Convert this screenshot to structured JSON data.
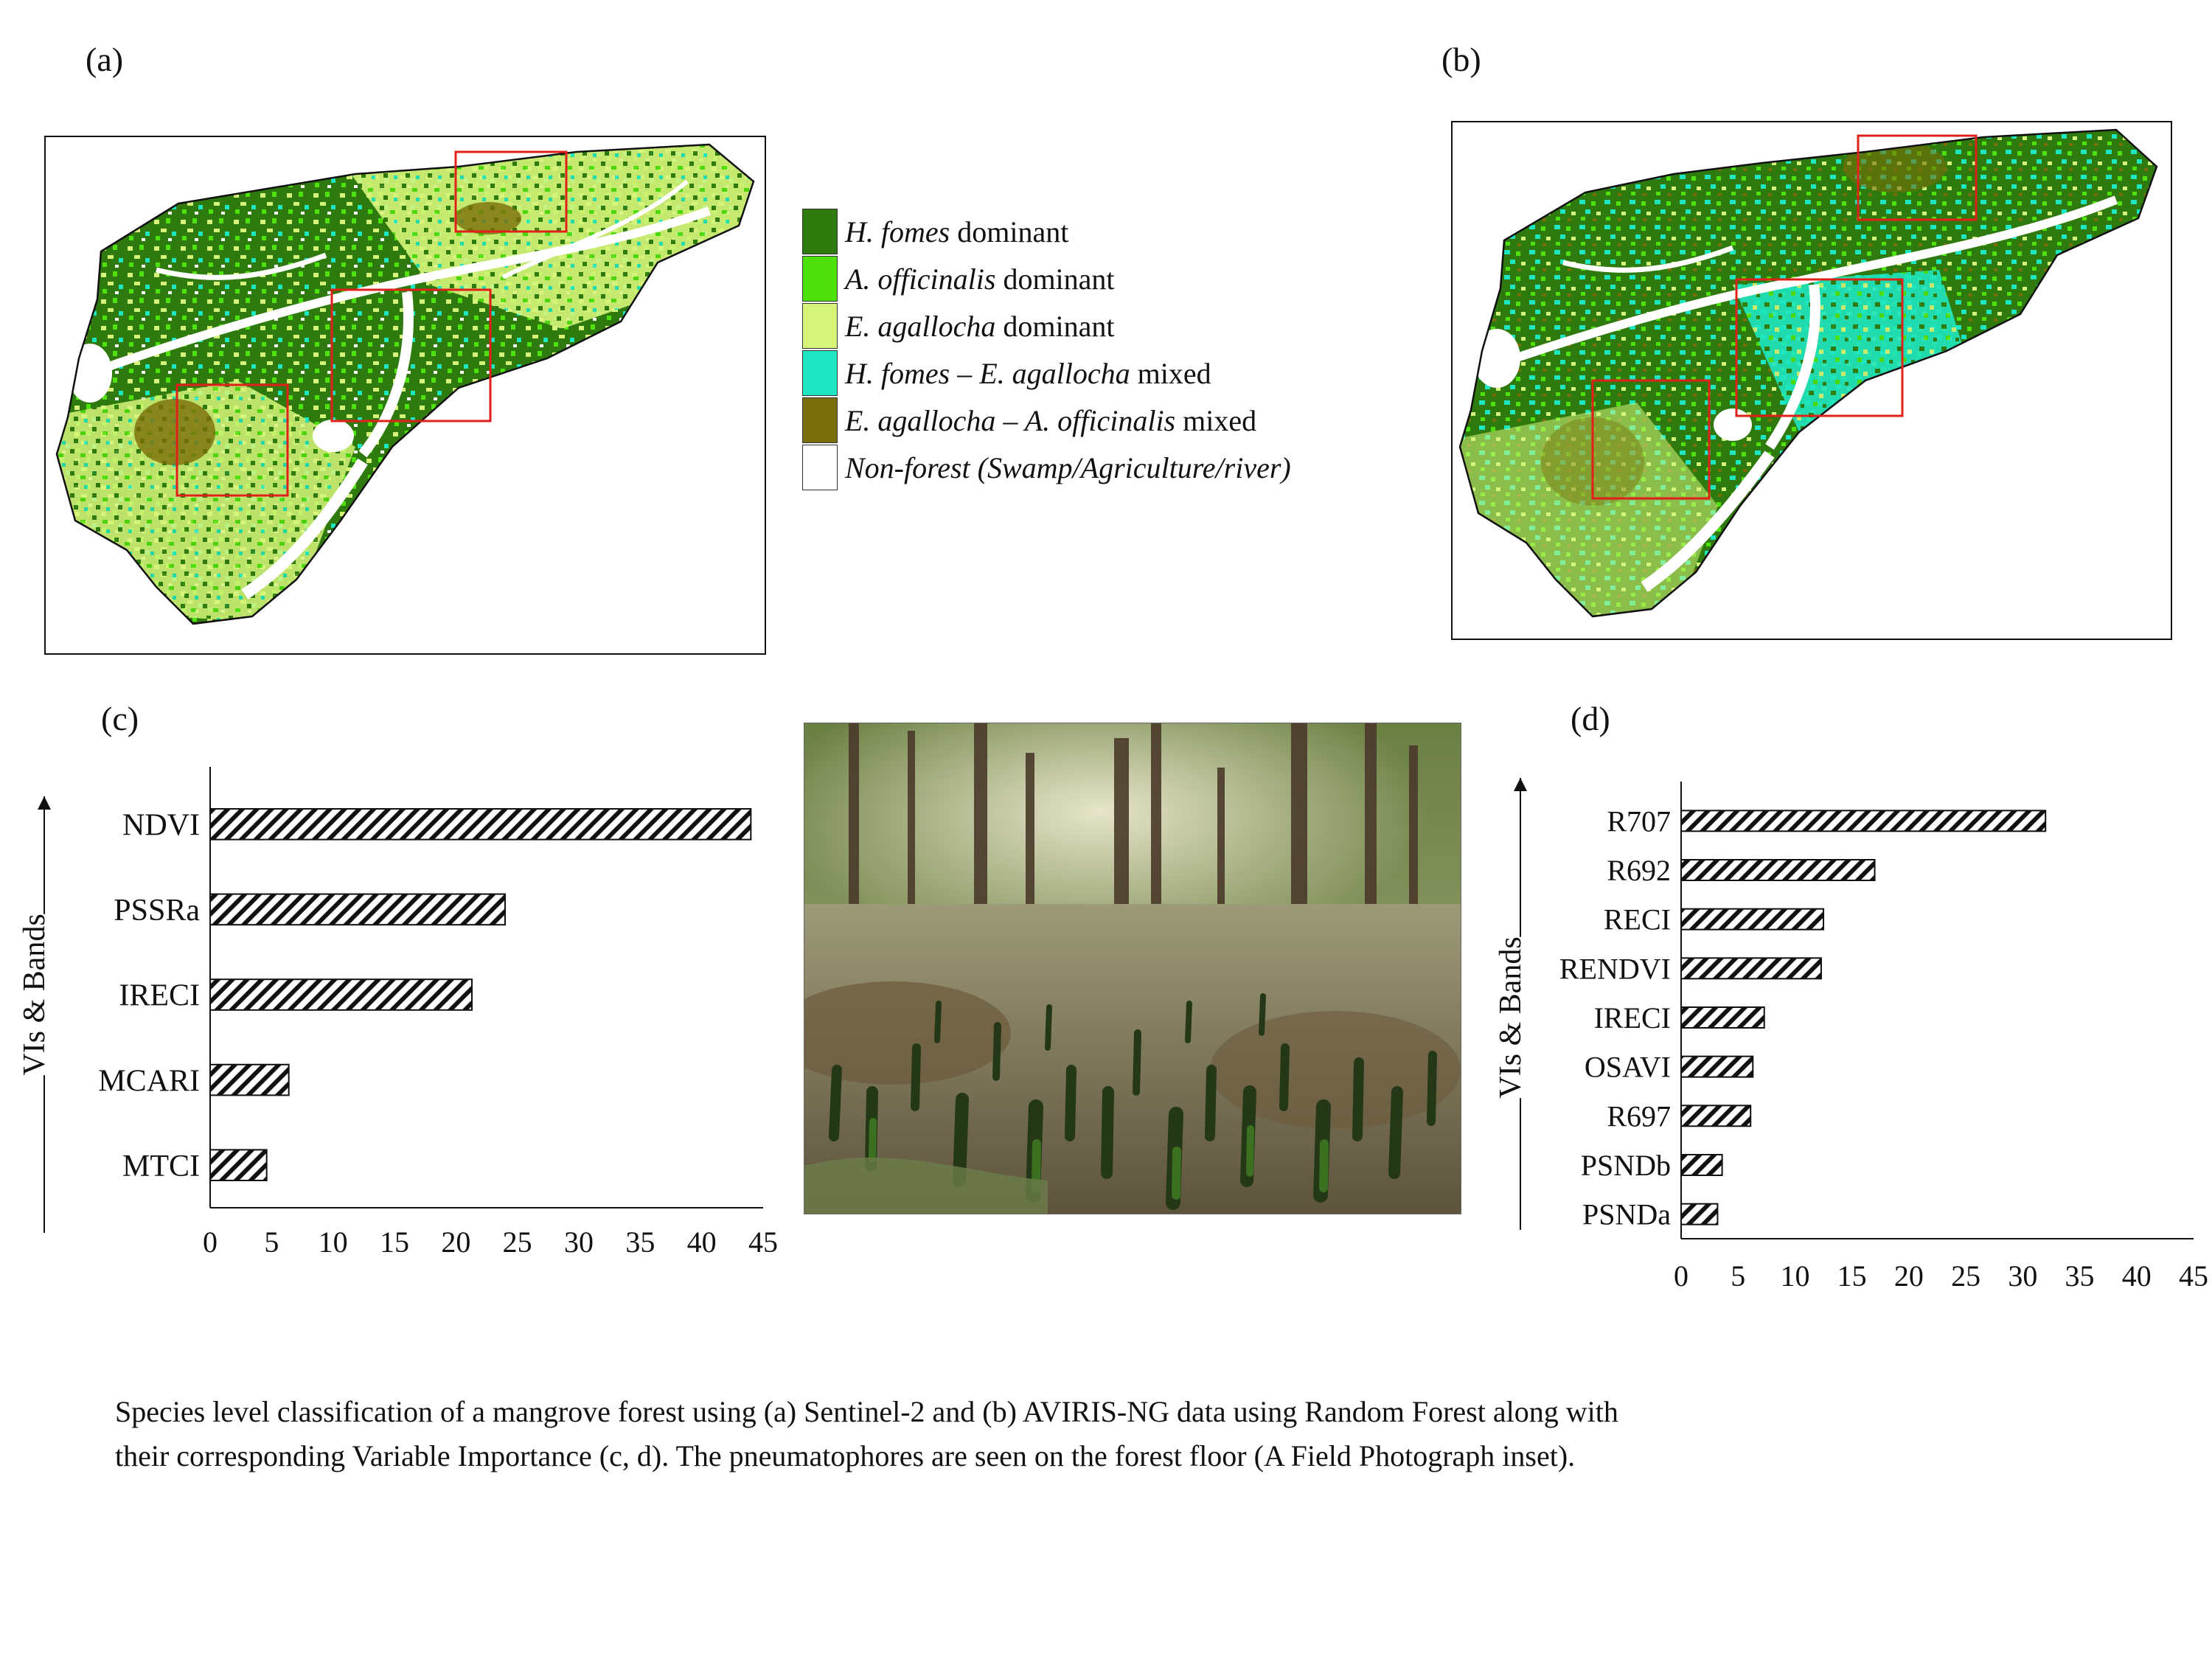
{
  "panel_labels": {
    "a": "(a)",
    "b": "(b)",
    "c": "(c)",
    "d": "(d)"
  },
  "legend": {
    "items": [
      {
        "species": "H. fomes",
        "suffix": " dominant",
        "italic_suffix": false,
        "color": "#2f7a0e"
      },
      {
        "species": "A. officinalis",
        "suffix": " dominant",
        "italic_suffix": false,
        "color": "#4fe10c"
      },
      {
        "species": "E. agallocha",
        "suffix": " dominant",
        "italic_suffix": false,
        "color": "#d6f47a"
      },
      {
        "species": "H. fomes – E. agallocha",
        "suffix": " mixed",
        "italic_suffix": false,
        "color": "#1ee6c0"
      },
      {
        "species": "E. agallocha – A. officinalis",
        "suffix": " mixed",
        "italic_suffix": false,
        "color": "#7a6e0a"
      },
      {
        "species": "",
        "suffix": "Non-forest (Swamp/Agriculture/river)",
        "italic_suffix": true,
        "color": "#ffffff"
      }
    ]
  },
  "colors": {
    "hfomes": "#2f7a0e",
    "aoff": "#4fe10c",
    "eagal": "#d6f47a",
    "mix1": "#1ee6c0",
    "mix2": "#7a6e0a",
    "box": "#e0201a",
    "bar_stroke": "#111111"
  },
  "chart_data": [
    {
      "type": "bar",
      "orientation": "horizontal",
      "panel": "(c)",
      "categories": [
        "NDVI",
        "PSSRa",
        "IRECI",
        "MCARI",
        "MTCI"
      ],
      "values": [
        44,
        24,
        21.3,
        6.4,
        4.6
      ],
      "ylabel": "VIs & Bands",
      "xlim": [
        0,
        45
      ],
      "xticks": [
        0,
        5,
        10,
        15,
        20,
        25,
        30,
        35,
        40,
        45
      ],
      "pattern": "diagonal-hatch",
      "grid": false
    },
    {
      "type": "bar",
      "orientation": "horizontal",
      "panel": "(d)",
      "categories": [
        "R707",
        "R692",
        "RECI",
        "RENDVI",
        "IRECI",
        "OSAVI",
        "R697",
        "PSNDb",
        "PSNDa"
      ],
      "values": [
        32,
        17,
        12.5,
        12.3,
        7.3,
        6.3,
        6.1,
        3.6,
        3.2
      ],
      "ylabel": "VIs & Bands",
      "xlim": [
        0,
        45
      ],
      "xticks": [
        0,
        5,
        10,
        15,
        20,
        25,
        30,
        35,
        40,
        45
      ],
      "pattern": "diagonal-hatch",
      "grid": false
    }
  ],
  "caption": {
    "line1": "Species level classification of a mangrove forest using (a) Sentinel-2 and (b) AVIRIS-NG data using Random Forest along with",
    "line2": "their corresponding Variable Importance (c, d). The pneumatophores are seen on the forest floor (A Field Photograph inset)."
  }
}
